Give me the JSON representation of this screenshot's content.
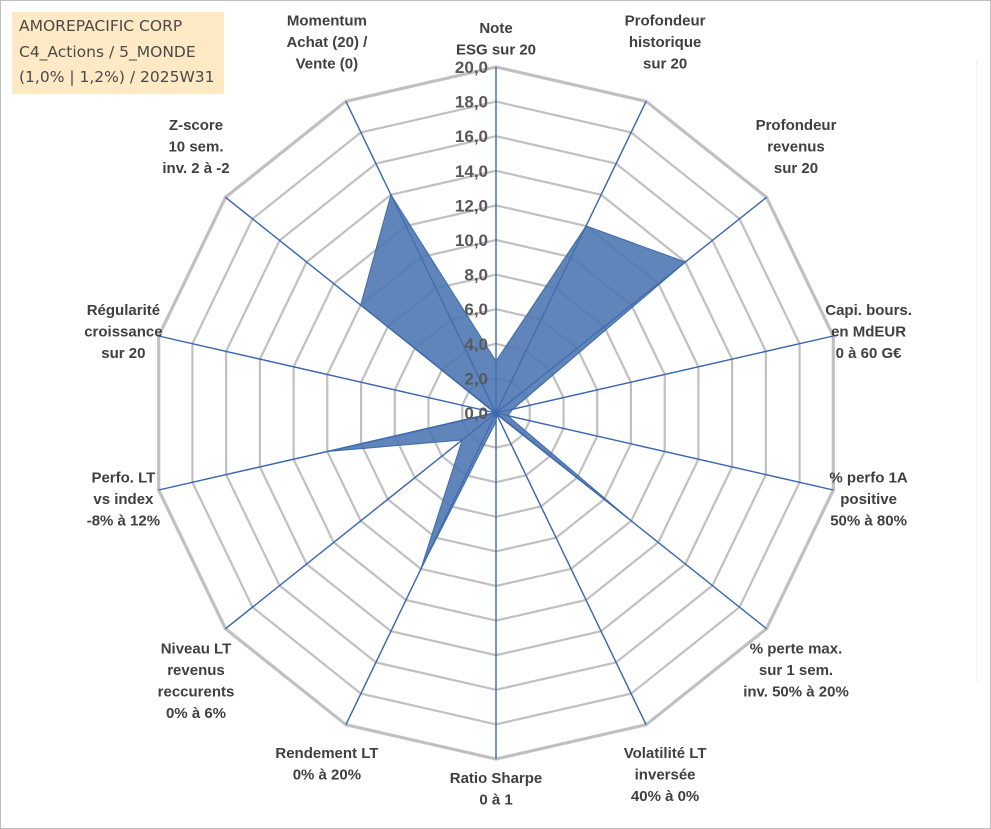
{
  "header": {
    "lines": [
      "AMOREPACIFIC CORP",
      "C4_Actions / 5_MONDE",
      "(1,0% | 1,2%) / 2025W31"
    ]
  },
  "chart_data": {
    "type": "radar",
    "title": "",
    "rmin": 0,
    "rmax": 20,
    "tick_step": 2,
    "tick_labels": [
      "0,0",
      "2,0",
      "4,0",
      "6,0",
      "8,0",
      "10,0",
      "12,0",
      "14,0",
      "16,0",
      "18,0",
      "20,0"
    ],
    "categories": [
      [
        "Note",
        "ESG sur 20"
      ],
      [
        "Profondeur",
        "historique",
        "sur 20"
      ],
      [
        "Profondeur",
        "revenus",
        "sur 20"
      ],
      [
        "Capi. bours.",
        "en MdEUR",
        "0 à 60 G€"
      ],
      [
        "% perfo 1A",
        "positive",
        "50% à 80%"
      ],
      [
        "% perte max.",
        "sur 1 sem.",
        "inv. 50% à 20%"
      ],
      [
        "Volatilité LT",
        "inversée",
        "40% à 0%"
      ],
      [
        "Ratio Sharpe",
        "0 à 1"
      ],
      [
        "Rendement LT",
        "0% à 20%"
      ],
      [
        "Niveau LT",
        "revenus",
        "reccurents",
        "0% à 6%"
      ],
      [
        "Perfo. LT",
        "vs index",
        "-8% à 12%"
      ],
      [
        "Régularité",
        "croissance",
        "sur 20"
      ],
      [
        "Z-score",
        "10 sem.",
        "inv. 2 à -2"
      ],
      [
        "Momentum",
        "Achat (20) /",
        "Vente (0)"
      ]
    ],
    "series": [
      {
        "values": [
          3.0,
          12.0,
          14.0,
          1.0,
          0.7,
          10.0,
          0.1,
          0.5,
          10.0,
          2.5,
          10.0,
          0.1,
          10.0,
          14.0
        ]
      }
    ],
    "colors": {
      "fill": "#4a74b0",
      "stroke": "#3d6aa8",
      "grid": "#c0c0c0",
      "spoke": "#3a66b0"
    },
    "grid": true,
    "legend": "none"
  }
}
